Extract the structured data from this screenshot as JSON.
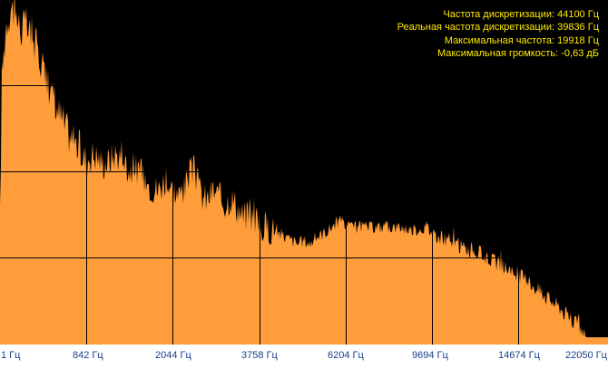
{
  "colors": {
    "background": "#000000",
    "spectrum_fill": "#ff9d3a",
    "grid": "#000000",
    "info_text": "#ffea00",
    "axis_text": "#1a3e8c"
  },
  "info": {
    "sample_rate": "Частота дискретизации: 44100 Гц",
    "real_sample_rate": "Реальная частота дискретизации: 39836 Гц",
    "max_frequency": "Максимальная частота: 19918 Гц",
    "max_loudness": "Максимальная громкость: -0,63 дБ"
  },
  "x_axis": {
    "tick_labels": [
      "1 Гц",
      "842 Гц",
      "2044 Гц",
      "3758 Гц",
      "6204 Гц",
      "9694 Гц",
      "14674 Гц",
      "22050 Гц"
    ]
  },
  "chart_data": {
    "type": "area",
    "x_label_values_hz": [
      1,
      842,
      2044,
      3758,
      6204,
      9694,
      14674,
      22050
    ],
    "grid": true,
    "envelope_shape": [
      [
        0.0,
        0.35
      ],
      [
        0.003,
        0.78
      ],
      [
        0.01,
        0.94
      ],
      [
        0.018,
        0.99
      ],
      [
        0.026,
        0.97
      ],
      [
        0.034,
        0.92
      ],
      [
        0.042,
        0.94
      ],
      [
        0.05,
        0.9
      ],
      [
        0.058,
        0.88
      ],
      [
        0.066,
        0.84
      ],
      [
        0.074,
        0.8
      ],
      [
        0.082,
        0.74
      ],
      [
        0.09,
        0.7
      ],
      [
        0.1,
        0.66
      ],
      [
        0.11,
        0.62
      ],
      [
        0.12,
        0.59
      ],
      [
        0.13,
        0.57
      ],
      [
        0.14,
        0.53
      ],
      [
        0.15,
        0.55
      ],
      [
        0.16,
        0.54
      ],
      [
        0.17,
        0.52
      ],
      [
        0.18,
        0.53
      ],
      [
        0.19,
        0.55
      ],
      [
        0.2,
        0.54
      ],
      [
        0.21,
        0.5
      ],
      [
        0.22,
        0.51
      ],
      [
        0.23,
        0.49
      ],
      [
        0.24,
        0.47
      ],
      [
        0.25,
        0.45
      ],
      [
        0.26,
        0.44
      ],
      [
        0.27,
        0.47
      ],
      [
        0.28,
        0.45
      ],
      [
        0.29,
        0.43
      ],
      [
        0.3,
        0.42
      ],
      [
        0.31,
        0.49
      ],
      [
        0.32,
        0.5
      ],
      [
        0.33,
        0.43
      ],
      [
        0.34,
        0.41
      ],
      [
        0.35,
        0.44
      ],
      [
        0.36,
        0.42
      ],
      [
        0.37,
        0.4
      ],
      [
        0.38,
        0.42
      ],
      [
        0.39,
        0.39
      ],
      [
        0.4,
        0.36
      ],
      [
        0.41,
        0.37
      ],
      [
        0.42,
        0.35
      ],
      [
        0.43,
        0.33
      ],
      [
        0.44,
        0.33
      ],
      [
        0.45,
        0.32
      ],
      [
        0.46,
        0.31
      ],
      [
        0.47,
        0.3
      ],
      [
        0.48,
        0.29
      ],
      [
        0.49,
        0.28
      ],
      [
        0.5,
        0.29
      ],
      [
        0.51,
        0.28
      ],
      [
        0.52,
        0.3
      ],
      [
        0.53,
        0.31
      ],
      [
        0.54,
        0.32
      ],
      [
        0.55,
        0.34
      ],
      [
        0.56,
        0.35
      ],
      [
        0.57,
        0.33
      ],
      [
        0.58,
        0.33
      ],
      [
        0.6,
        0.33
      ],
      [
        0.62,
        0.33
      ],
      [
        0.64,
        0.33
      ],
      [
        0.66,
        0.33
      ],
      [
        0.68,
        0.32
      ],
      [
        0.7,
        0.33
      ],
      [
        0.71,
        0.32
      ],
      [
        0.72,
        0.3
      ],
      [
        0.74,
        0.29
      ],
      [
        0.76,
        0.27
      ],
      [
        0.78,
        0.26
      ],
      [
        0.8,
        0.24
      ],
      [
        0.82,
        0.22
      ],
      [
        0.84,
        0.2
      ],
      [
        0.86,
        0.18
      ],
      [
        0.88,
        0.15
      ],
      [
        0.9,
        0.12
      ],
      [
        0.92,
        0.09
      ],
      [
        0.94,
        0.05
      ],
      [
        0.955,
        0.03
      ],
      [
        0.965,
        0.0
      ],
      [
        1.0,
        0.0
      ]
    ],
    "noise": [
      {
        "from": 0.0,
        "to": 0.15,
        "amount": 0.06
      },
      {
        "from": 0.15,
        "to": 0.45,
        "amount": 0.05
      },
      {
        "from": 0.45,
        "to": 0.7,
        "amount": 0.02
      },
      {
        "from": 0.7,
        "to": 0.97,
        "amount": 0.025
      }
    ]
  }
}
